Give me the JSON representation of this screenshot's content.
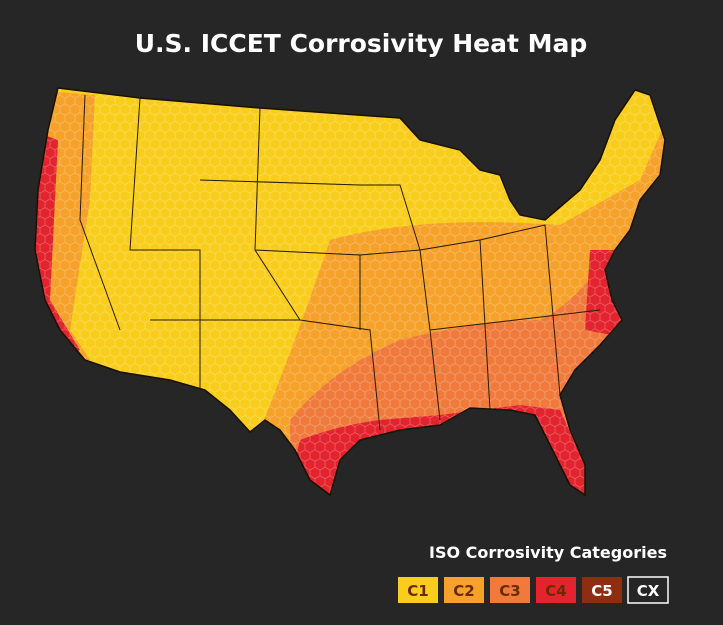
{
  "title": "U.S. ICCET Corrosivity Heat Map",
  "legend": {
    "title": "ISO Corrosivity Categories",
    "items": [
      {
        "label": "C1",
        "color": "#f8cd1c"
      },
      {
        "label": "C2",
        "color": "#f5a12a"
      },
      {
        "label": "C3",
        "color": "#ef7a3c"
      },
      {
        "label": "C4",
        "color": "#e3242f"
      },
      {
        "label": "C5",
        "color": "#8e2e10"
      },
      {
        "label": "CX",
        "color": "#262626"
      }
    ]
  }
}
